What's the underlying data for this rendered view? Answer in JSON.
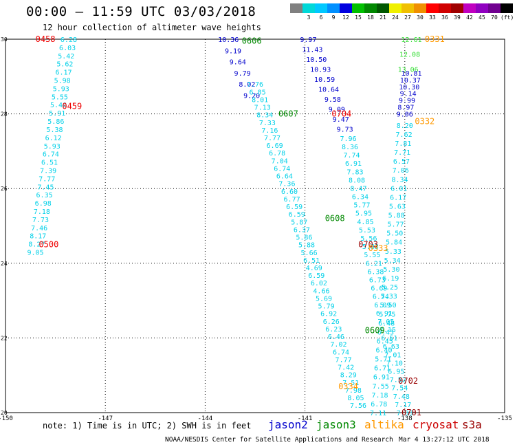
{
  "header": {
    "title": "00:00 – 11:59 UTC 03/03/2018",
    "subtitle": "12 hour collection of altimeter wave heights"
  },
  "legend": {
    "swatches": [
      {
        "color": "#808080",
        "label": ""
      },
      {
        "color": "#00d8d8",
        "label": "3"
      },
      {
        "color": "#00c8ff",
        "label": "6"
      },
      {
        "color": "#0090ff",
        "label": "9"
      },
      {
        "color": "#0000e0",
        "label": "12"
      },
      {
        "color": "#00c000",
        "label": "15"
      },
      {
        "color": "#008800",
        "label": "18"
      },
      {
        "color": "#005800",
        "label": "21"
      },
      {
        "color": "#f0f000",
        "label": "24"
      },
      {
        "color": "#f0c000",
        "label": "27"
      },
      {
        "color": "#f09000",
        "label": "30"
      },
      {
        "color": "#ff0000",
        "label": "33"
      },
      {
        "color": "#d00000",
        "label": "36"
      },
      {
        "color": "#a00000",
        "label": "39"
      },
      {
        "color": "#c000c0",
        "label": "42"
      },
      {
        "color": "#9000c0",
        "label": "45"
      },
      {
        "color": "#700090",
        "label": "70"
      },
      {
        "color": "#000000",
        "label": "(ft)"
      }
    ]
  },
  "footer": {
    "note": "note:  1) Time is in UTC;  2) SWH is in feet",
    "credit": "NOAA/NESDIS Center for Satellite Applications and Research",
    "timestamp": "Mar  4 13:27:12 UTC 2018",
    "satellites": [
      {
        "name": "jason2",
        "color": "#0000cc"
      },
      {
        "name": "jason3",
        "color": "#008800"
      },
      {
        "name": "altika",
        "color": "#ff9900"
      },
      {
        "name": "cryosat",
        "color": "#cc0000"
      },
      {
        "name": "s3a",
        "color": "#990000"
      }
    ]
  },
  "chart_data": {
    "type": "scatter",
    "title": "00:00 – 11:59 UTC 03/03/2018",
    "subtitle": "12 hour collection of altimeter wave heights",
    "xlim": [
      -150,
      -135
    ],
    "ylim": [
      20,
      30
    ],
    "xticks": [
      "-150",
      "-147",
      "-144",
      "-141",
      "-138",
      "-135"
    ],
    "yticks": [
      "20",
      "22",
      "24",
      "26",
      "28",
      "30"
    ],
    "grid": true,
    "colors": {
      "lt": "#00d0e8",
      "bl": "#0000cc",
      "gr": "#33dd33",
      "red": "#ee0000",
      "grn": "#008800",
      "org": "#ff9900",
      "dkr": "#990000"
    },
    "tracks": [
      {
        "name": "track-1",
        "color_key": "lt",
        "start": [
          -148.1,
          30.0
        ],
        "end": [
          -149.1,
          24.3
        ],
        "values": [
          "6.28",
          "6.03",
          "5.42",
          "5.62",
          "6.17",
          "5.98",
          "5.93",
          "5.55",
          "5.40",
          "5.91",
          "5.86",
          "5.38",
          "6.12",
          "5.93",
          "6.74",
          "6.51",
          "7.39",
          "7.77",
          "7.45",
          "6.35",
          "6.98",
          "7.18",
          "7.73",
          "7.46",
          "8.17",
          "8.27",
          "9.05"
        ]
      },
      {
        "name": "track-2a",
        "color_key": "bl",
        "start": [
          -143.3,
          30.0
        ],
        "end": [
          -142.6,
          28.5
        ],
        "values": [
          "10.36",
          "9.19",
          "9.64",
          "9.79",
          "8.02",
          "9.20"
        ]
      },
      {
        "name": "track-2b",
        "color_key": "lt",
        "start": [
          -142.5,
          28.8
        ],
        "end": [
          -139.4,
          20.2
        ],
        "values": [
          "7.76",
          "6.85",
          "8.01",
          "7.13",
          "8.34",
          "7.33",
          "7.16",
          "7.77",
          "6.69",
          "6.78",
          "7.04",
          "6.74",
          "6.64",
          "7.36",
          "6.60",
          "6.77",
          "6.59",
          "6.59",
          "5.87",
          "6.37",
          "5.86",
          "5.88",
          "5.66",
          "6.51",
          "4.69",
          "6.59",
          "6.02",
          "4.66",
          "5.69",
          "5.79",
          "6.92",
          "6.26",
          "6.23",
          "6.46",
          "7.02",
          "6.74",
          "7.77",
          "7.42",
          "8.29",
          "7.51",
          "7.98",
          "8.05",
          "7.56"
        ]
      },
      {
        "name": "track-3a",
        "color_key": "bl",
        "start": [
          -140.9,
          30.0
        ],
        "end": [
          -139.8,
          27.6
        ],
        "values": [
          "9.97",
          "11.43",
          "10.50",
          "10.93",
          "10.59",
          "10.64",
          "9.58",
          "9.09",
          "9.47",
          "9.73"
        ]
      },
      {
        "name": "track-3b",
        "color_key": "lt",
        "start": [
          -139.7,
          27.35
        ],
        "end": [
          -138.0,
          20.0
        ],
        "values": [
          "7.96",
          "8.36",
          "7.74",
          "6.91",
          "7.83",
          "8.08",
          "8.47",
          "6.34",
          "5.77",
          "5.95",
          "4.85",
          "5.53",
          "5.56",
          "5.83",
          "5.55",
          "6.21",
          "6.38",
          "6.73",
          "6.69",
          "6.74",
          "6.09",
          "6.91",
          "7.05",
          "7.15",
          "6.51",
          "6.63",
          "7.01",
          "7.10",
          "6.95",
          "7.52",
          "7.54",
          "7.48",
          "7.17",
          "7.33"
        ]
      },
      {
        "name": "track-4a",
        "color_key": "gr",
        "start": [
          -137.8,
          30.0
        ],
        "end": [
          -137.9,
          29.2
        ],
        "values": [
          "12.61",
          "12.08",
          "13.06"
        ]
      },
      {
        "name": "track-4b",
        "color_key": "bl",
        "start": [
          -137.8,
          29.1
        ],
        "end": [
          -138.0,
          28.0
        ],
        "values": [
          "10.81",
          "10.37",
          "10.30",
          "9.14",
          "9.99",
          "8.97",
          "9.06"
        ]
      },
      {
        "name": "track-4c",
        "color_key": "lt",
        "start": [
          -138.0,
          27.7
        ],
        "end": [
          -138.8,
          20.0
        ],
        "values": [
          "8.20",
          "7.62",
          "7.81",
          "7.71",
          "6.57",
          "7.06",
          "8.34",
          "6.01",
          "6.17",
          "5.63",
          "5.88",
          "5.77",
          "5.50",
          "5.84",
          "5.33",
          "5.34",
          "5.30",
          "6.19",
          "5.25",
          "5.33",
          "5.50",
          "5.75",
          "6.48",
          "6.43",
          "6.45",
          "6.40",
          "5.71",
          "6.71",
          "6.91",
          "7.55",
          "7.18",
          "6.78",
          "7.11"
        ]
      },
      {
        "name": "time-labels",
        "labels": [
          {
            "text": "0458",
            "x": -148.8,
            "y": 30.0,
            "color_key": "red"
          },
          {
            "text": "0459",
            "x": -148.0,
            "y": 28.2,
            "color_key": "red"
          },
          {
            "text": "0500",
            "x": -148.7,
            "y": 24.5,
            "color_key": "red"
          },
          {
            "text": "0606",
            "x": -142.6,
            "y": 29.95,
            "color_key": "grn"
          },
          {
            "text": "0607",
            "x": -141.5,
            "y": 28.0,
            "color_key": "grn"
          },
          {
            "text": "0608",
            "x": -140.1,
            "y": 25.2,
            "color_key": "grn"
          },
          {
            "text": "0609",
            "x": -138.9,
            "y": 22.2,
            "color_key": "grn"
          },
          {
            "text": "0704",
            "x": -139.9,
            "y": 28.0,
            "color_key": "red"
          },
          {
            "text": "0703",
            "x": -139.1,
            "y": 24.5,
            "color_key": "dkr"
          },
          {
            "text": "0702",
            "x": -137.9,
            "y": 20.85,
            "color_key": "dkr"
          },
          {
            "text": "0701",
            "x": -137.8,
            "y": 20.0,
            "color_key": "dkr"
          },
          {
            "text": "0331",
            "x": -137.1,
            "y": 30.0,
            "color_key": "org"
          },
          {
            "text": "0332",
            "x": -137.4,
            "y": 27.8,
            "color_key": "org"
          },
          {
            "text": "0333",
            "x": -138.8,
            "y": 24.4,
            "color_key": "org"
          },
          {
            "text": "0334",
            "x": -139.7,
            "y": 20.7,
            "color_key": "org"
          }
        ]
      }
    ]
  }
}
